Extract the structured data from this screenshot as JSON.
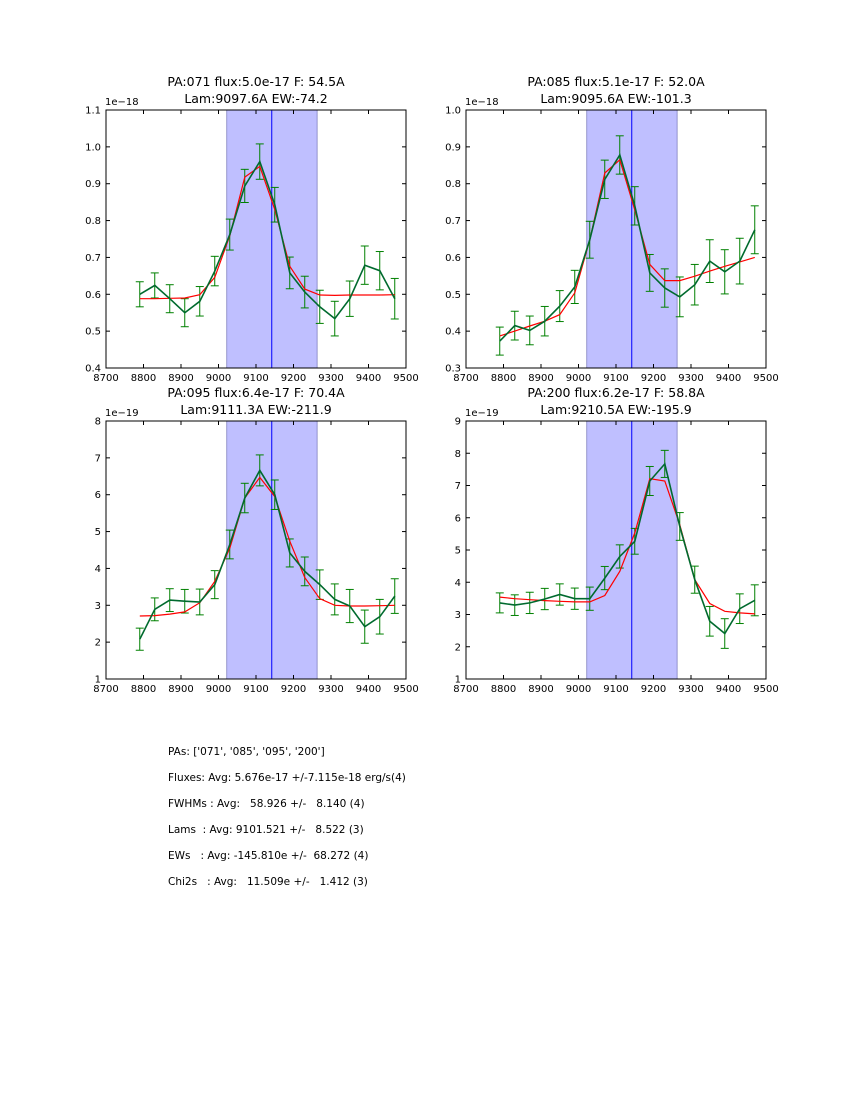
{
  "chart_data": [
    {
      "type": "line",
      "title_line1": "PA:071 flux:5.0e-17 F: 54.5A",
      "title_line2": "Lam:9097.6A EW:-74.2",
      "scale_label": "1e−18",
      "xlim": [
        8700,
        9500
      ],
      "ylim": [
        0.4,
        1.1
      ],
      "xticks": [
        8700,
        8800,
        8900,
        9000,
        9100,
        9200,
        9300,
        9400,
        9500
      ],
      "yticks": [
        "0.4",
        "0.5",
        "0.6",
        "0.7",
        "0.8",
        "0.9",
        "1.0",
        "1.1"
      ],
      "shade_range": [
        9022,
        9263
      ],
      "center_line": 9142,
      "x": [
        8790,
        8830,
        8870,
        8910,
        8950,
        8990,
        9030,
        9070,
        9110,
        9150,
        9190,
        9230,
        9270,
        9310,
        9350,
        9390,
        9430,
        9470
      ],
      "series": [
        {
          "name": "data",
          "color": "#006a2e",
          "values": [
            0.6,
            0.624,
            0.588,
            0.55,
            0.581,
            0.663,
            0.762,
            0.894,
            0.96,
            0.843,
            0.658,
            0.606,
            0.566,
            0.534,
            0.588,
            0.679,
            0.664,
            0.588
          ],
          "errors": [
            0.034,
            0.034,
            0.038,
            0.038,
            0.04,
            0.04,
            0.042,
            0.045,
            0.048,
            0.047,
            0.043,
            0.043,
            0.045,
            0.047,
            0.048,
            0.052,
            0.052,
            0.055
          ]
        },
        {
          "name": "fit",
          "color": "#ff0000",
          "values": [
            0.588,
            0.588,
            0.589,
            0.59,
            0.599,
            0.646,
            0.759,
            0.918,
            0.947,
            0.83,
            0.676,
            0.614,
            0.598,
            0.597,
            0.598,
            0.598,
            0.598,
            0.599
          ]
        }
      ]
    },
    {
      "type": "line",
      "title_line1": "PA:085 flux:5.1e-17 F: 52.0A",
      "title_line2": "Lam:9095.6A EW:-101.3",
      "scale_label": "1e−18",
      "xlim": [
        8700,
        9500
      ],
      "ylim": [
        0.3,
        1.0
      ],
      "xticks": [
        8700,
        8800,
        8900,
        9000,
        9100,
        9200,
        9300,
        9400,
        9500
      ],
      "yticks": [
        "0.3",
        "0.4",
        "0.5",
        "0.6",
        "0.7",
        "0.8",
        "0.9",
        "1.0"
      ],
      "shade_range": [
        9022,
        9263
      ],
      "center_line": 9142,
      "x": [
        8790,
        8830,
        8870,
        8910,
        8950,
        8990,
        9030,
        9070,
        9110,
        9150,
        9190,
        9230,
        9270,
        9310,
        9350,
        9390,
        9430,
        9470
      ],
      "series": [
        {
          "name": "data",
          "color": "#006a2e",
          "values": [
            0.373,
            0.415,
            0.402,
            0.427,
            0.468,
            0.52,
            0.648,
            0.812,
            0.878,
            0.74,
            0.558,
            0.517,
            0.493,
            0.526,
            0.59,
            0.561,
            0.59,
            0.675
          ],
          "errors": [
            0.038,
            0.039,
            0.039,
            0.04,
            0.042,
            0.045,
            0.05,
            0.052,
            0.052,
            0.052,
            0.05,
            0.052,
            0.054,
            0.055,
            0.058,
            0.06,
            0.062,
            0.065
          ]
        },
        {
          "name": "fit",
          "color": "#ff0000",
          "values": [
            0.387,
            0.4,
            0.414,
            0.427,
            0.445,
            0.504,
            0.648,
            0.829,
            0.865,
            0.729,
            0.581,
            0.537,
            0.537,
            0.549,
            0.563,
            0.576,
            0.588,
            0.6
          ]
        }
      ]
    },
    {
      "type": "line",
      "title_line1": "PA:095 flux:6.4e-17 F: 70.4A",
      "title_line2": "Lam:9111.3A EW:-211.9",
      "scale_label": "1e−19",
      "xlim": [
        8700,
        9500
      ],
      "ylim": [
        1,
        8
      ],
      "xticks": [
        8700,
        8800,
        8900,
        9000,
        9100,
        9200,
        9300,
        9400,
        9500
      ],
      "yticks": [
        "1",
        "2",
        "3",
        "4",
        "5",
        "6",
        "7",
        "8"
      ],
      "shade_range": [
        9022,
        9263
      ],
      "center_line": 9142,
      "x": [
        8790,
        8830,
        8870,
        8910,
        8950,
        8990,
        9030,
        9070,
        9110,
        9150,
        9190,
        9230,
        9270,
        9310,
        9350,
        9390,
        9430,
        9470
      ],
      "series": [
        {
          "name": "data",
          "color": "#006a2e",
          "values": [
            2.08,
            2.89,
            3.14,
            3.11,
            3.09,
            3.56,
            4.65,
            5.91,
            6.66,
            6.0,
            4.42,
            3.92,
            3.56,
            3.16,
            2.98,
            2.42,
            2.69,
            3.25
          ],
          "errors": [
            0.3,
            0.31,
            0.31,
            0.32,
            0.35,
            0.38,
            0.39,
            0.4,
            0.42,
            0.4,
            0.38,
            0.39,
            0.4,
            0.42,
            0.45,
            0.45,
            0.47,
            0.47
          ]
        },
        {
          "name": "fit",
          "color": "#ff0000",
          "values": [
            2.71,
            2.72,
            2.76,
            2.82,
            3.07,
            3.65,
            4.55,
            5.91,
            6.47,
            5.95,
            4.74,
            3.75,
            3.18,
            3.0,
            2.98,
            2.98,
            2.99,
            3.0
          ]
        }
      ]
    },
    {
      "type": "line",
      "title_line1": "PA:200 flux:6.2e-17 F: 58.8A",
      "title_line2": "Lam:9210.5A EW:-195.9",
      "scale_label": "1e−19",
      "xlim": [
        8700,
        9500
      ],
      "ylim": [
        1,
        9
      ],
      "xticks": [
        8700,
        8800,
        8900,
        9000,
        9100,
        9200,
        9300,
        9400,
        9500
      ],
      "yticks": [
        "1",
        "2",
        "3",
        "4",
        "5",
        "6",
        "7",
        "8",
        "9"
      ],
      "shade_range": [
        9022,
        9263
      ],
      "center_line": 9142,
      "x": [
        8790,
        8830,
        8870,
        8910,
        8950,
        8990,
        9030,
        9070,
        9110,
        9150,
        9190,
        9230,
        9270,
        9310,
        9350,
        9390,
        9430,
        9470
      ],
      "series": [
        {
          "name": "data",
          "color": "#006a2e",
          "values": [
            3.36,
            3.29,
            3.36,
            3.48,
            3.62,
            3.49,
            3.49,
            4.13,
            4.8,
            5.27,
            7.14,
            7.67,
            5.73,
            4.08,
            2.79,
            2.41,
            3.18,
            3.44
          ],
          "errors": [
            0.31,
            0.32,
            0.33,
            0.33,
            0.33,
            0.33,
            0.36,
            0.36,
            0.36,
            0.4,
            0.45,
            0.42,
            0.43,
            0.42,
            0.46,
            0.46,
            0.46,
            0.48
          ]
        },
        {
          "name": "fit",
          "color": "#ff0000",
          "values": [
            3.54,
            3.49,
            3.46,
            3.43,
            3.41,
            3.39,
            3.39,
            3.59,
            4.34,
            5.53,
            7.21,
            7.14,
            5.78,
            4.08,
            3.34,
            3.1,
            3.05,
            3.02
          ]
        }
      ]
    }
  ],
  "colors": {
    "shade": "#bfbfff",
    "center_line": "#0000ff",
    "errorbar": "#008000"
  },
  "stats": {
    "pas": "PAs: ['071', '085', '095', '200']",
    "fluxes": "Fluxes: Avg: 5.676e-17 +/-7.115e-18 erg/s(4)",
    "fwhms": "FWHMs : Avg:   58.926 +/-   8.140 (4)",
    "lams": "Lams  : Avg: 9101.521 +/-   8.522 (3)",
    "ews": "EWs   : Avg: -145.810e +/-  68.272 (4)",
    "chi2s": "Chi2s   : Avg:   11.509e +/-   1.412 (3)"
  }
}
